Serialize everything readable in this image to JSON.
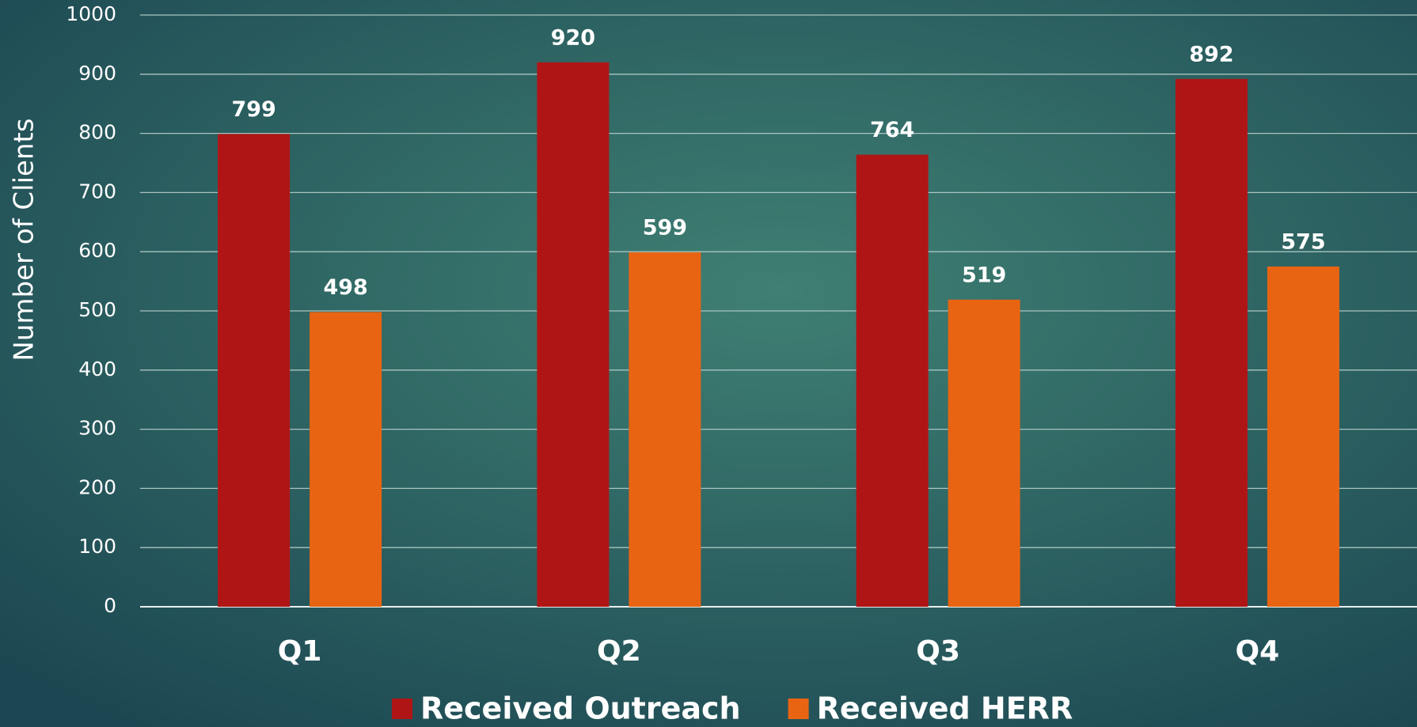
{
  "chart_data": {
    "type": "bar",
    "y_axis_label": "Number of Clients",
    "categories": [
      "Q1",
      "Q2",
      "Q3",
      "Q4"
    ],
    "series": [
      {
        "name": "Received Outreach",
        "color": "#b01515",
        "values": [
          799,
          920,
          764,
          892
        ]
      },
      {
        "name": "Received HERR",
        "color": "#e96412",
        "values": [
          498,
          599,
          519,
          575
        ]
      }
    ],
    "ylim": [
      0,
      1000
    ],
    "yticks": [
      0,
      100,
      200,
      300,
      400,
      500,
      600,
      700,
      800,
      900,
      1000
    ],
    "grid": true,
    "legend": "bottom"
  }
}
